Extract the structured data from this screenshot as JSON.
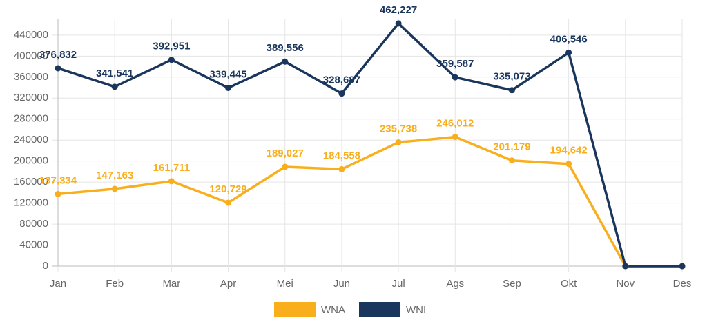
{
  "chart_data": {
    "type": "line",
    "categories": [
      "Jan",
      "Feb",
      "Mar",
      "Apr",
      "Mei",
      "Jun",
      "Jul",
      "Ags",
      "Sep",
      "Okt",
      "Nov",
      "Des"
    ],
    "series": [
      {
        "name": "WNA",
        "color": "#f9ae1b",
        "values": [
          137334,
          147163,
          161711,
          120729,
          189027,
          184558,
          235738,
          246012,
          201179,
          194642,
          0,
          0
        ],
        "value_labels": [
          "137,334",
          "147,163",
          "161,711",
          "120,729",
          "189,027",
          "184,558",
          "235,738",
          "246,012",
          "201,179",
          "194,642",
          null,
          null
        ]
      },
      {
        "name": "WNI",
        "color": "#1b365d",
        "values": [
          376832,
          341541,
          392951,
          339445,
          389556,
          328687,
          462227,
          359587,
          335073,
          406546,
          0,
          0
        ],
        "value_labels": [
          "376,832",
          "341,541",
          "392,951",
          "339,445",
          "389,556",
          "328,687",
          "462,227",
          "359,587",
          "335,073",
          "406,546",
          null,
          null
        ]
      }
    ],
    "ylim": [
      0,
      470000
    ],
    "yticks": [
      0,
      40000,
      80000,
      120000,
      160000,
      200000,
      240000,
      280000,
      320000,
      360000,
      400000,
      440000
    ],
    "grid": true
  }
}
